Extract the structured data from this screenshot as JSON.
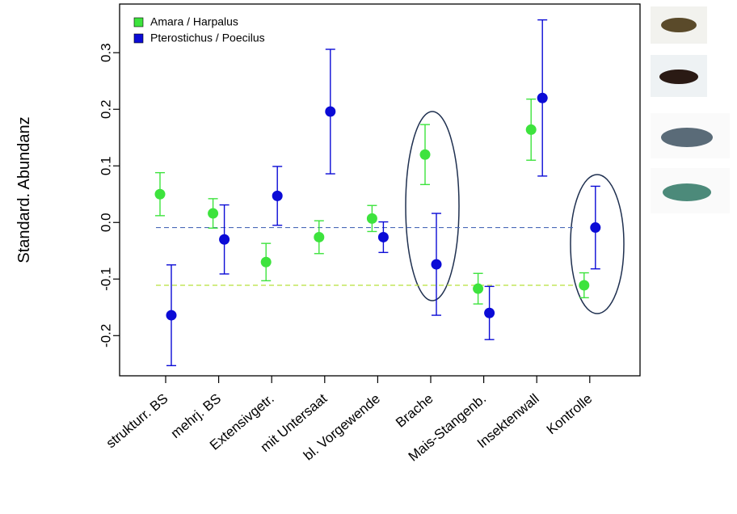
{
  "chart_data": {
    "type": "errorbar",
    "ylabel": "Standard. Abundanz",
    "categories": [
      "strukturr. BS",
      "mehrj. BS",
      "Extensivgetr.",
      "mit Untersaat",
      "bl. Vorgewende",
      "Brache",
      "Mais-Stangenb.",
      "Insektenwall",
      "Kontrolle"
    ],
    "series": [
      {
        "name": "Amara / Harpalus",
        "color": "#3de33d",
        "values": [
          0.05,
          0.016,
          -0.07,
          -0.026,
          0.007,
          0.12,
          -0.117,
          0.164,
          -0.111
        ],
        "errors": [
          0.038,
          0.026,
          0.033,
          0.029,
          0.023,
          0.053,
          0.027,
          0.054,
          0.022
        ]
      },
      {
        "name": "Pterostichus / Poecilus",
        "color": "#0b0bd6",
        "values": [
          -0.164,
          -0.03,
          0.047,
          0.196,
          -0.026,
          -0.074,
          -0.16,
          0.22,
          -0.009
        ],
        "errors": [
          0.089,
          0.061,
          0.052,
          0.11,
          0.027,
          0.09,
          0.047,
          0.138,
          0.073
        ]
      }
    ],
    "ylim": [
      -0.271,
      0.386
    ],
    "yticks": [
      -0.2,
      -0.1,
      {
        "value": 0,
        "label": "0.0"
      },
      0.1,
      0.2,
      0.3
    ],
    "legend": "top-left"
  }
}
